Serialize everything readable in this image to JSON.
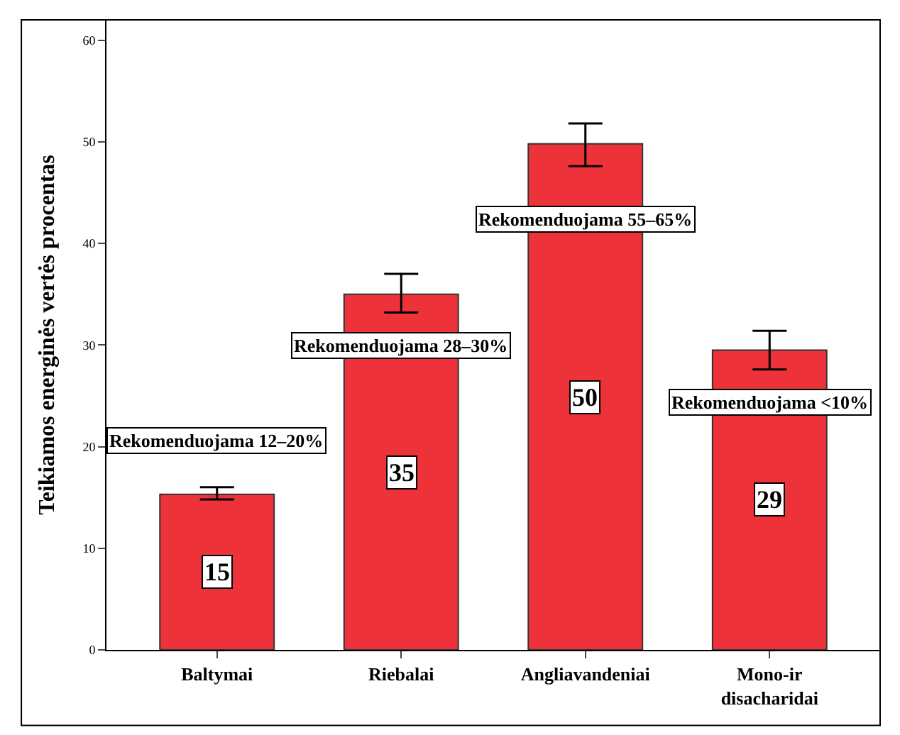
{
  "chart_data": {
    "type": "bar",
    "ylabel": "Teikiamos energinės vertės procentas",
    "categories": [
      "Baltymai",
      "Riebalai",
      "Angliavandeniai",
      "Mono-ir\ndisacharidai"
    ],
    "values": [
      15.3,
      35,
      49.8,
      29.5
    ],
    "value_labels": [
      "15",
      "35",
      "50",
      "29"
    ],
    "errors": [
      [
        14.8,
        16
      ],
      [
        33.2,
        37
      ],
      [
        47.6,
        51.8
      ],
      [
        27.6,
        31.4
      ]
    ],
    "color": "#ee3239",
    "ylim": [
      0,
      62
    ],
    "yticks": [
      0,
      10,
      20,
      30,
      40,
      50,
      60
    ],
    "annotations": [
      "Rekomenduojama 12–20%",
      "Rekomenduojama 28–30%",
      "Rekomenduojama 55–65%",
      "Rekomenduojama <10%"
    ]
  }
}
